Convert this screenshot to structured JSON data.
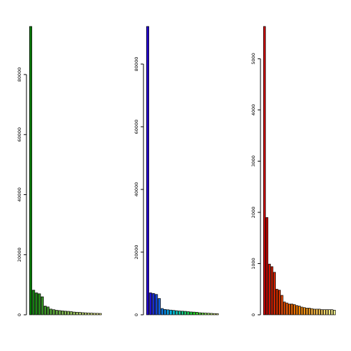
{
  "chart_data": [
    {
      "type": "bar",
      "title": "",
      "xlabel": "",
      "ylabel": "",
      "ylim": [
        0,
        96000
      ],
      "yticks": [
        0,
        20000,
        40000,
        60000,
        80000
      ],
      "color_ramp": [
        "#0a7a0a",
        "#ffff99"
      ],
      "categories": [
        "",
        "",
        "",
        "",
        "",
        "",
        "",
        "",
        "",
        "",
        "",
        "",
        "",
        "",
        "",
        "",
        "",
        "",
        "",
        "",
        "",
        "",
        "",
        "",
        ""
      ],
      "values": [
        96000,
        8200,
        7300,
        7000,
        6000,
        2900,
        2600,
        1900,
        1700,
        1500,
        1400,
        1300,
        1200,
        1150,
        1050,
        900,
        850,
        800,
        700,
        650,
        600,
        550,
        500,
        480,
        450
      ]
    },
    {
      "type": "bar",
      "title": "",
      "xlabel": "",
      "ylabel": "",
      "ylim": [
        0,
        92000
      ],
      "yticks": [
        0,
        20000,
        40000,
        60000,
        80000
      ],
      "color_ramp": [
        "#2200cc",
        "#00bbee",
        "#22dd22",
        "#ffff99"
      ],
      "categories": [
        "",
        "",
        "",
        "",
        "",
        "",
        "",
        "",
        "",
        "",
        "",
        "",
        "",
        "",
        "",
        "",
        "",
        "",
        "",
        "",
        "",
        "",
        "",
        "",
        ""
      ],
      "values": [
        92000,
        7000,
        6800,
        6500,
        5200,
        2000,
        1700,
        1600,
        1500,
        1400,
        1300,
        1200,
        1150,
        1100,
        1000,
        900,
        850,
        800,
        650,
        600,
        550,
        500,
        450,
        400,
        350
      ]
    },
    {
      "type": "bar",
      "title": "",
      "xlabel": "",
      "ylabel": "",
      "ylim": [
        0,
        5630
      ],
      "yticks": [
        0,
        1000,
        2000,
        3000,
        4000,
        5000
      ],
      "color_ramp": [
        "#cc0000",
        "#ff8800",
        "#ffff99"
      ],
      "categories": [
        "",
        "",
        "",
        "",
        "",
        "",
        "",
        "",
        "",
        "",
        "",
        "",
        "",
        "",
        "",
        "",
        "",
        "",
        "",
        "",
        "",
        "",
        "",
        "",
        "",
        "",
        "",
        "",
        ""
      ],
      "values": [
        5630,
        1900,
        990,
        940,
        830,
        500,
        480,
        380,
        250,
        230,
        210,
        210,
        200,
        180,
        170,
        150,
        140,
        130,
        130,
        120,
        110,
        110,
        110,
        100,
        100,
        100,
        100,
        100,
        90
      ]
    }
  ]
}
